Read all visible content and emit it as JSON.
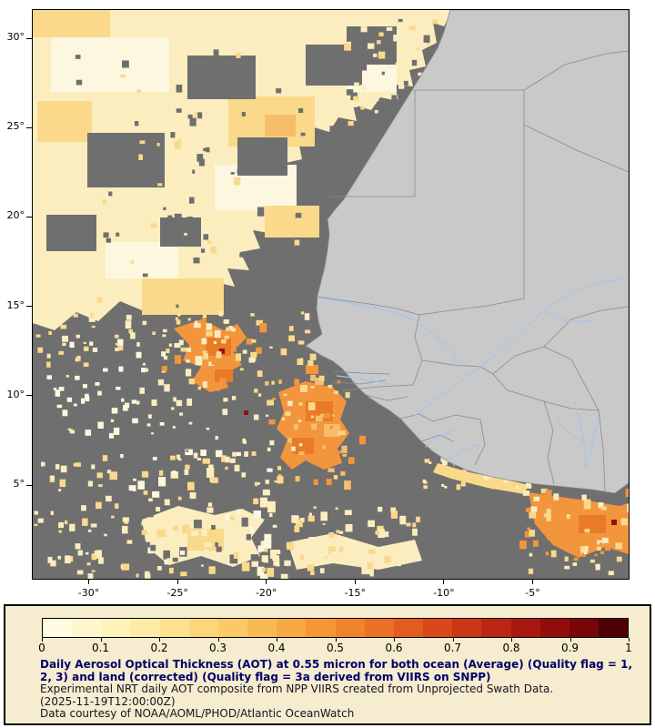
{
  "map": {
    "y_tick_labels": [
      "30°",
      "25°",
      "20°",
      "15°",
      "10°",
      "5°"
    ],
    "x_tick_labels": [
      "-30°",
      "-25°",
      "-20°",
      "-15°",
      "-10°",
      "-5°"
    ]
  },
  "legend": {
    "tick_labels": [
      "0",
      "0.1",
      "0.2",
      "0.3",
      "0.4",
      "0.5",
      "0.6",
      "0.7",
      "0.8",
      "0.9",
      "1"
    ],
    "colorbar_colors": [
      "#FFFCE2",
      "#FFF8CF",
      "#FFF3BA",
      "#FEECA4",
      "#FDE28E",
      "#FCD679",
      "#FBC965",
      "#F9BA53",
      "#F7A944",
      "#F49737",
      "#F0842D",
      "#EA7025",
      "#E25C1F",
      "#D8481A",
      "#CB3616",
      "#BB2613",
      "#A81810",
      "#920D0C",
      "#780508",
      "#4E0004"
    ],
    "caption_bold": "Daily Aerosol Optical Thickness (AOT) at 0.55 micron for both ocean (Average) (Quality flag = 1, 2, 3) and land (corrected) (Quality flag = 3a derived from VIIRS on SNPP)",
    "line_experimental": "Experimental NRT daily AOT composite from NPP VIIRS created from Unprojected Swath Data.",
    "line_timestamp": "(2025-11-19T12:00:00Z)",
    "line_courtesy": "Data courtesy of NOAA/AOML/PHOD/Atlantic OceanWatch"
  },
  "colors": {
    "missing_data": "#6F6F6F",
    "land": "#C9C9C9",
    "land_border": "#8A8A8A",
    "river": "#A5C6E8",
    "aot_pale": "#FDF7DF",
    "aot_low": "#FBEDBE",
    "aot_gold": "#FAD98B",
    "aot_gold2": "#F6BE6A",
    "aot_orange": "#F2953C",
    "aot_deep": "#E87A28",
    "aot_red": "#8E150F",
    "legend_background": "#F6ECCF",
    "caption_bold_color": "#00006B",
    "caption_plain_color": "#141420"
  }
}
